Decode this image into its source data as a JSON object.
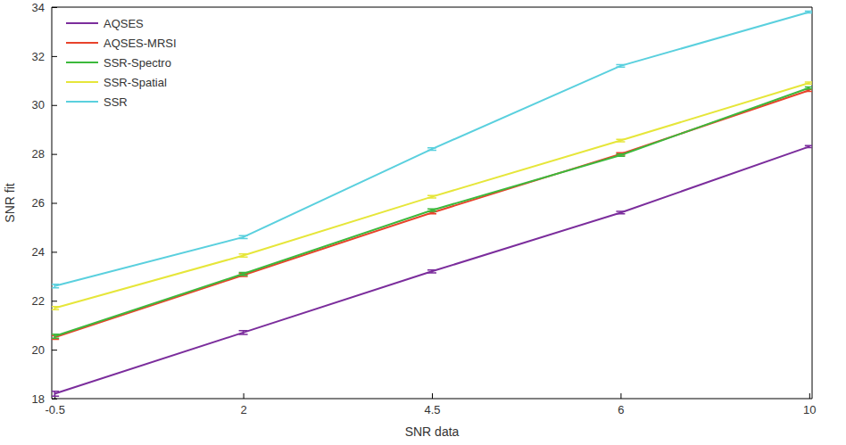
{
  "chart_data": {
    "type": "line",
    "x_label": "SNR data",
    "y_label": "SNR fit",
    "categories": [
      "-0.5",
      "2",
      "4.5",
      "6",
      "10"
    ],
    "ylim": [
      18,
      34
    ],
    "yticks": [
      18,
      20,
      22,
      24,
      26,
      28,
      30,
      32,
      34
    ],
    "grid": false,
    "legend": "top-left",
    "series": [
      {
        "name": "AQSES",
        "color": "#7b2d9c",
        "values": [
          18.2,
          20.7,
          23.2,
          25.6,
          28.3
        ],
        "errors": [
          0.1,
          0.08,
          0.06,
          0.05,
          0.04
        ]
      },
      {
        "name": "AQSES-MRSI",
        "color": "#e8432b",
        "values": [
          20.5,
          23.05,
          25.6,
          28.0,
          30.6
        ],
        "errors": [
          0.08,
          0.06,
          0.05,
          0.05,
          0.04
        ]
      },
      {
        "name": "SSR-Spectro",
        "color": "#3cb93c",
        "values": [
          20.55,
          23.1,
          25.7,
          27.95,
          30.7
        ],
        "errors": [
          0.08,
          0.06,
          0.05,
          0.05,
          0.04
        ]
      },
      {
        "name": "SSR-Spatial",
        "color": "#e6e63a",
        "values": [
          21.7,
          23.85,
          26.25,
          28.55,
          30.9
        ],
        "errors": [
          0.06,
          0.06,
          0.05,
          0.05,
          0.04
        ]
      },
      {
        "name": "SSR",
        "color": "#5ad0de",
        "values": [
          22.6,
          24.6,
          28.2,
          31.6,
          33.8
        ],
        "errors": [
          0.07,
          0.06,
          0.05,
          0.05,
          0.04
        ]
      }
    ]
  }
}
